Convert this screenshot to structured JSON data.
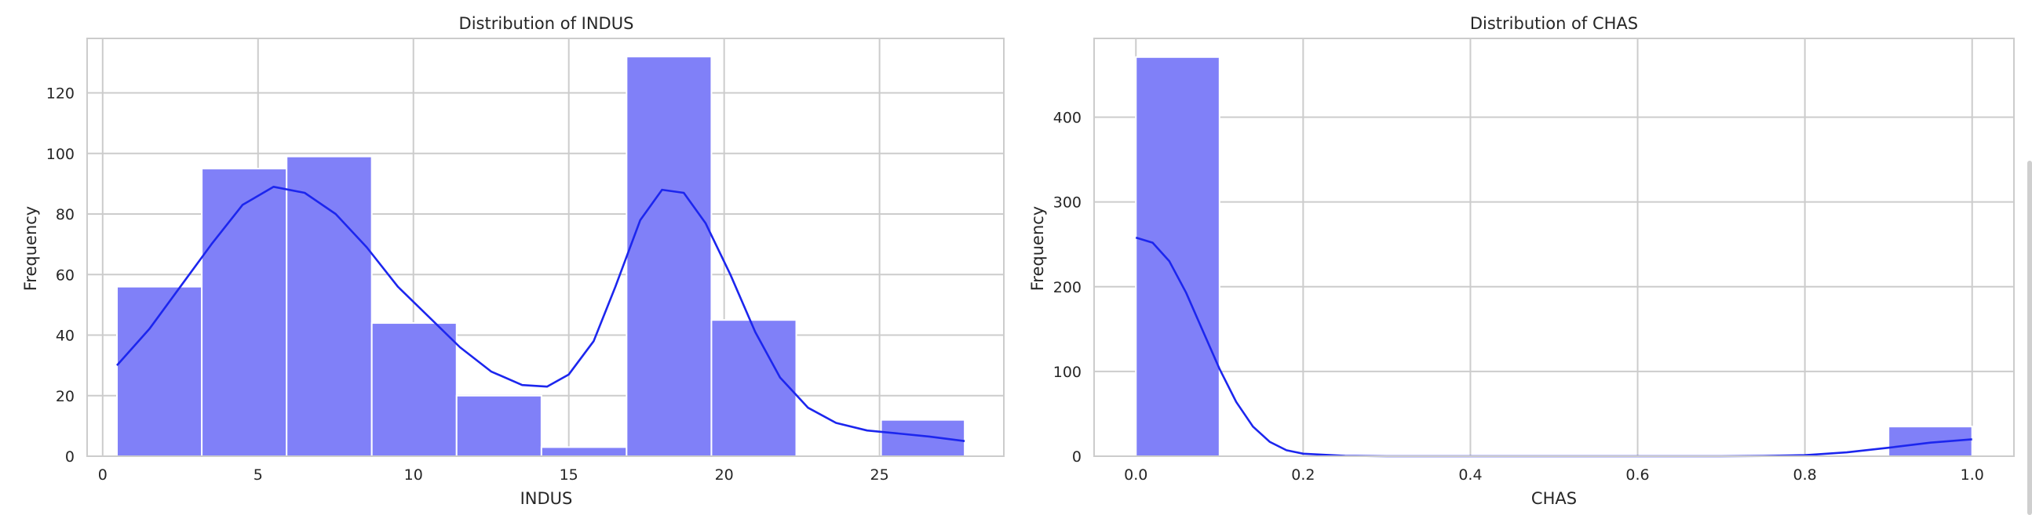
{
  "chart_data": [
    {
      "type": "bar",
      "title": "Distribution of INDUS",
      "xlabel": "INDUS",
      "ylabel": "Frequency",
      "xlim": [
        -0.5,
        29.0
      ],
      "ylim": [
        0,
        138
      ],
      "xticks": [
        0,
        5,
        10,
        15,
        20,
        25
      ],
      "yticks": [
        0,
        20,
        40,
        60,
        80,
        100,
        120
      ],
      "bin_edges": [
        0.46,
        3.19,
        5.92,
        8.66,
        11.39,
        14.12,
        16.86,
        19.59,
        22.32,
        25.05,
        27.74
      ],
      "values": [
        56,
        95,
        99,
        44,
        20,
        3,
        132,
        45,
        0,
        12
      ],
      "bar_color": "#8080f8",
      "kde_color": "#1c26ee",
      "kde": [
        [
          0.46,
          30
        ],
        [
          1.5,
          42
        ],
        [
          2.5,
          56
        ],
        [
          3.5,
          70
        ],
        [
          4.5,
          83
        ],
        [
          5.5,
          89
        ],
        [
          6.5,
          87
        ],
        [
          7.5,
          80
        ],
        [
          8.5,
          69
        ],
        [
          9.5,
          56
        ],
        [
          10.5,
          46
        ],
        [
          11.5,
          36
        ],
        [
          12.5,
          28
        ],
        [
          13.5,
          23.5
        ],
        [
          14.3,
          23
        ],
        [
          15.0,
          27
        ],
        [
          15.8,
          38
        ],
        [
          16.5,
          56
        ],
        [
          17.3,
          78
        ],
        [
          18.0,
          88
        ],
        [
          18.7,
          87
        ],
        [
          19.4,
          77
        ],
        [
          20.2,
          60
        ],
        [
          21.0,
          41
        ],
        [
          21.8,
          26
        ],
        [
          22.7,
          16
        ],
        [
          23.6,
          11
        ],
        [
          24.6,
          8.5
        ],
        [
          25.6,
          7.5
        ],
        [
          26.6,
          6.5
        ],
        [
          27.74,
          5
        ]
      ],
      "grid": true
    },
    {
      "type": "bar",
      "title": "Distribution of CHAS",
      "xlabel": "CHAS",
      "ylabel": "Frequency",
      "xlim": [
        -0.05,
        1.05
      ],
      "ylim": [
        0,
        493
      ],
      "xticks": [
        "0.0",
        "0.2",
        "0.4",
        "0.6",
        "0.8",
        "1.0"
      ],
      "yticks": [
        0,
        100,
        200,
        300,
        400
      ],
      "bin_edges": [
        0.0,
        0.1,
        0.2,
        0.3,
        0.4,
        0.5,
        0.6,
        0.7,
        0.8,
        0.9,
        1.0
      ],
      "values": [
        471,
        0,
        0,
        0,
        0,
        0,
        0,
        0,
        0,
        35
      ],
      "bar_color": "#8080f8",
      "kde_color": "#1c26ee",
      "kde": [
        [
          0.0,
          258
        ],
        [
          0.02,
          252
        ],
        [
          0.04,
          230
        ],
        [
          0.06,
          193
        ],
        [
          0.08,
          148
        ],
        [
          0.1,
          103
        ],
        [
          0.12,
          64
        ],
        [
          0.14,
          35
        ],
        [
          0.16,
          17
        ],
        [
          0.18,
          7
        ],
        [
          0.2,
          3
        ],
        [
          0.25,
          0.5
        ],
        [
          0.3,
          0
        ],
        [
          0.7,
          0
        ],
        [
          0.75,
          0.3
        ],
        [
          0.8,
          1.2
        ],
        [
          0.85,
          4.5
        ],
        [
          0.9,
          10
        ],
        [
          0.95,
          16
        ],
        [
          1.0,
          20
        ]
      ],
      "grid": true
    }
  ]
}
